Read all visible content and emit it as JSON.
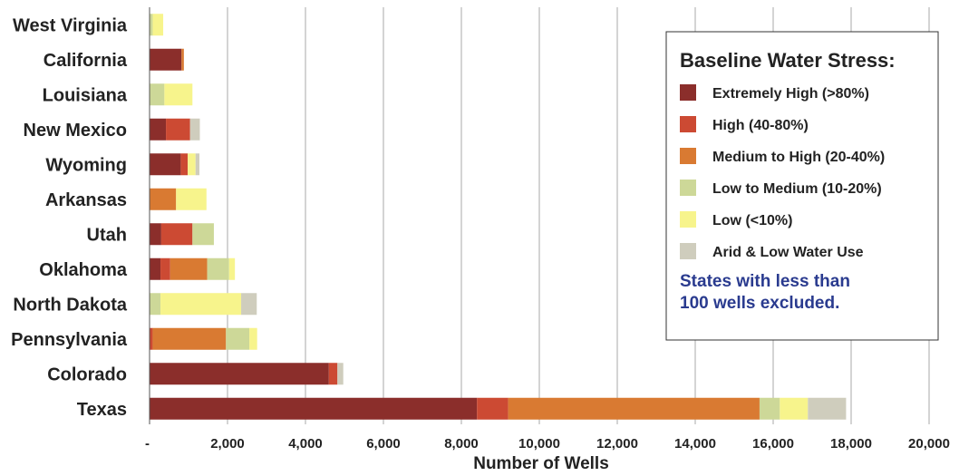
{
  "chart_data": {
    "type": "bar",
    "orientation": "horizontal",
    "stacked": true,
    "categories": [
      "West Virginia",
      "California",
      "Louisiana",
      "New Mexico",
      "Wyoming",
      "Arkansas",
      "Utah",
      "Oklahoma",
      "North Dakota",
      "Pennsylvania",
      "Colorado",
      "Texas"
    ],
    "series": [
      {
        "name": "Extremely High (>80%)",
        "color": "#8b2e2b",
        "values": [
          0,
          820,
          0,
          420,
          800,
          0,
          300,
          280,
          0,
          0,
          4600,
          8400
        ]
      },
      {
        "name": "High (40-80%)",
        "color": "#cc4a33",
        "values": [
          0,
          0,
          0,
          620,
          180,
          0,
          800,
          250,
          0,
          80,
          220,
          800
        ]
      },
      {
        "name": "Medium to High (20-40%)",
        "color": "#d97a32",
        "values": [
          0,
          60,
          0,
          0,
          0,
          680,
          0,
          950,
          0,
          1880,
          0,
          6450
        ]
      },
      {
        "name": "Low to Medium (10-20%)",
        "color": "#cdd898",
        "values": [
          80,
          0,
          380,
          0,
          0,
          0,
          550,
          560,
          280,
          600,
          0,
          520
        ]
      },
      {
        "name": "Low (<10%)",
        "color": "#f7f48c",
        "values": [
          270,
          0,
          720,
          0,
          200,
          780,
          0,
          150,
          2070,
          200,
          0,
          720
        ]
      },
      {
        "name": "Arid & Low Water Use",
        "color": "#cfcdbd",
        "values": [
          0,
          0,
          0,
          250,
          100,
          0,
          0,
          0,
          400,
          0,
          150,
          980
        ]
      }
    ],
    "xlabel": "Number of Wells",
    "xlim": [
      0,
      20000
    ],
    "xticks": [
      0,
      2000,
      4000,
      6000,
      8000,
      10000,
      12000,
      14000,
      16000,
      18000,
      20000
    ],
    "xtick_labels": [
      "-",
      "2,000",
      "4,000",
      "6,000",
      "8,000",
      "10,000",
      "12,000",
      "14,000",
      "16,000",
      "18,000",
      "20,000"
    ],
    "grid": "vertical",
    "legend": {
      "title": "Baseline Water Stress:",
      "placement": "top-right",
      "note_lines": [
        "States with less than",
        "100 wells excluded."
      ],
      "note_color": "#2a3b8f"
    }
  }
}
